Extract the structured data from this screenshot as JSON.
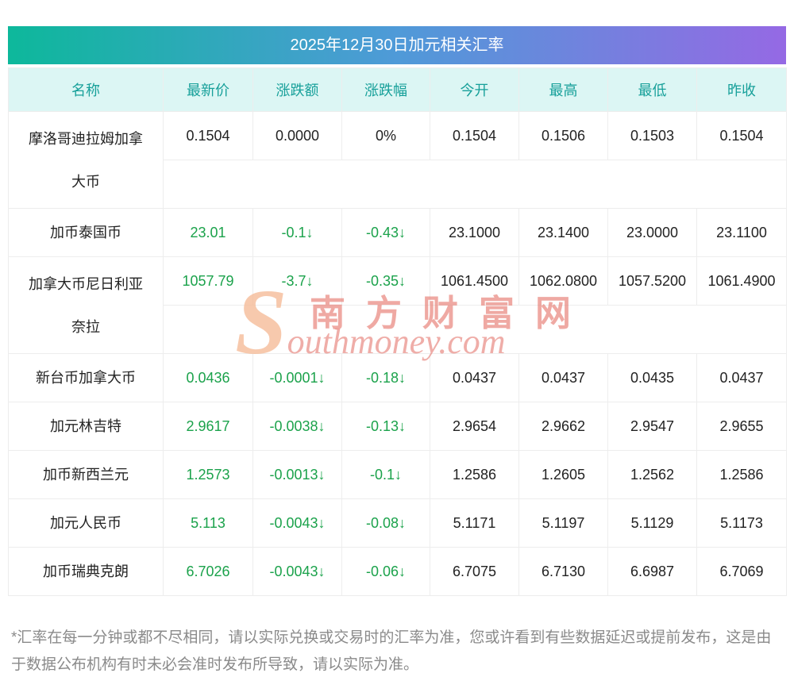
{
  "title": "2025年12月30日加元相关汇率",
  "table": {
    "headers": [
      "名称",
      "最新价",
      "涨跌额",
      "涨跌幅",
      "今开",
      "最高",
      "最低",
      "昨收"
    ],
    "rows": [
      {
        "name": "摩洛哥迪拉姆加拿大币",
        "latest": "0.1504",
        "change": "0.0000",
        "change_pct": "0%",
        "open": "0.1504",
        "high": "0.1506",
        "low": "0.1503",
        "prev_close": "0.1504",
        "trend": "flat",
        "two_line": true
      },
      {
        "name": "加币泰国币",
        "latest": "23.01",
        "change": "-0.1↓",
        "change_pct": "-0.43↓",
        "open": "23.1000",
        "high": "23.1400",
        "low": "23.0000",
        "prev_close": "23.1100",
        "trend": "down",
        "two_line": false
      },
      {
        "name": "加拿大币尼日利亚奈拉",
        "latest": "1057.79",
        "change": "-3.7↓",
        "change_pct": "-0.35↓",
        "open": "1061.4500",
        "high": "1062.0800",
        "low": "1057.5200",
        "prev_close": "1061.4900",
        "trend": "down",
        "two_line": true
      },
      {
        "name": "新台币加拿大币",
        "latest": "0.0436",
        "change": "-0.0001↓",
        "change_pct": "-0.18↓",
        "open": "0.0437",
        "high": "0.0437",
        "low": "0.0435",
        "prev_close": "0.0437",
        "trend": "down",
        "two_line": false
      },
      {
        "name": "加元林吉特",
        "latest": "2.9617",
        "change": "-0.0038↓",
        "change_pct": "-0.13↓",
        "open": "2.9654",
        "high": "2.9662",
        "low": "2.9547",
        "prev_close": "2.9655",
        "trend": "down",
        "two_line": false
      },
      {
        "name": "加币新西兰元",
        "latest": "1.2573",
        "change": "-0.0013↓",
        "change_pct": "-0.1↓",
        "open": "1.2586",
        "high": "1.2605",
        "low": "1.2562",
        "prev_close": "1.2586",
        "trend": "down",
        "two_line": false
      },
      {
        "name": "加元人民币",
        "latest": "5.113",
        "change": "-0.0043↓",
        "change_pct": "-0.08↓",
        "open": "5.1171",
        "high": "5.1197",
        "low": "5.1129",
        "prev_close": "5.1173",
        "trend": "down",
        "two_line": false
      },
      {
        "name": "加币瑞典克朗",
        "latest": "6.7026",
        "change": "-0.0043↓",
        "change_pct": "-0.06↓",
        "open": "6.7075",
        "high": "6.7130",
        "low": "6.6987",
        "prev_close": "6.7069",
        "trend": "down",
        "two_line": false
      }
    ]
  },
  "watermark": {
    "text_cn": "南方财富网",
    "text_en": "Southmoney.com"
  },
  "footer": "*汇率在每一分钟或都不尽相同，请以实际兑换或交易时的汇率为准，您或许看到有些数据延迟或提前发布，这是由于数据公布机构有时未必会准时发布所导致，请以实际为准。",
  "colors": {
    "title_gradient_start": "#0db89b",
    "title_gradient_end": "#9569e4",
    "header_bg": "#dcf6f4",
    "header_text": "#17a09a",
    "down_green": "#1ba24b",
    "text_dark": "#222222",
    "footer_text": "#8a8a8a"
  }
}
